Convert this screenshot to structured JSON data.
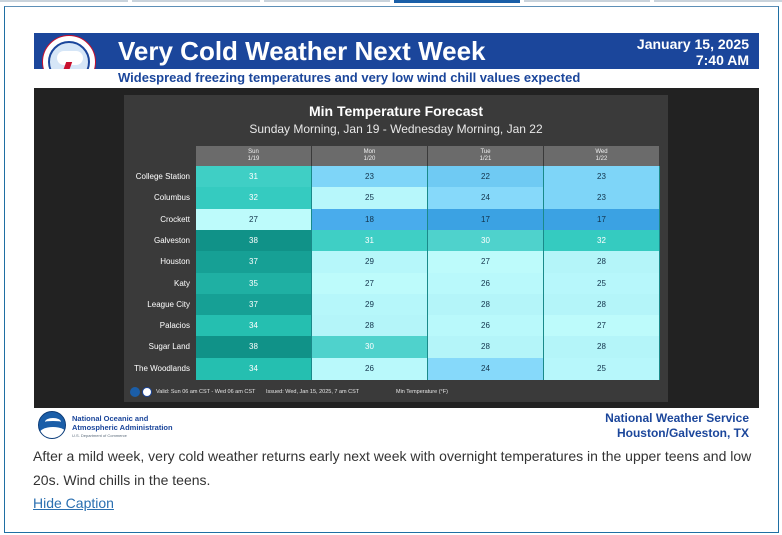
{
  "banner": {
    "title": "Very Cold Weather Next Week",
    "date": "January 15, 2025",
    "time": "7:40 AM",
    "subtitle": "Widespread freezing temperatures and very low wind chill values expected",
    "logo_text": "NATIONAL WEATHER SERVICE",
    "brand_color": "#1b469b"
  },
  "forecast": {
    "title": "Min Temperature Forecast",
    "subtitle": "Sunday Morning, Jan 19 - Wednesday Morning, Jan 22",
    "columns": [
      {
        "day": "Sun",
        "date": "1/19"
      },
      {
        "day": "Mon",
        "date": "1/20"
      },
      {
        "day": "Tue",
        "date": "1/21"
      },
      {
        "day": "Wed",
        "date": "1/22"
      }
    ],
    "rows": [
      {
        "city": "College Station",
        "values": [
          31,
          23,
          22,
          23
        ]
      },
      {
        "city": "Columbus",
        "values": [
          32,
          25,
          24,
          23
        ]
      },
      {
        "city": "Crockett",
        "values": [
          27,
          18,
          17,
          17
        ]
      },
      {
        "city": "Galveston",
        "values": [
          38,
          31,
          30,
          32
        ]
      },
      {
        "city": "Houston",
        "values": [
          37,
          29,
          27,
          28
        ]
      },
      {
        "city": "Katy",
        "values": [
          35,
          27,
          26,
          25
        ]
      },
      {
        "city": "League City",
        "values": [
          37,
          29,
          28,
          28
        ]
      },
      {
        "city": "Palacios",
        "values": [
          34,
          28,
          26,
          27
        ]
      },
      {
        "city": "Sugar Land",
        "values": [
          38,
          30,
          28,
          28
        ]
      },
      {
        "city": "The Woodlands",
        "values": [
          34,
          26,
          24,
          25
        ]
      }
    ],
    "valid": "Valid: Sun 06 am CST - Wed 06 am CST",
    "issued": "Issued: Wed, Jan 15, 2025, 7 am CST",
    "unit_label": "Min Temperature (°F)"
  },
  "footer": {
    "noaa_line1": "National Oceanic and",
    "noaa_line2": "Atmospheric Administration",
    "noaa_dept": "U.S. Department of Commerce",
    "office_line1": "National Weather Service",
    "office_line2": "Houston/Galveston, TX"
  },
  "caption": {
    "text": "After a mild week, very cold weather returns early next week with overnight temperatures in the upper teens and low 20s. Wind chills in the teens.",
    "hide_label": "Hide Caption"
  }
}
